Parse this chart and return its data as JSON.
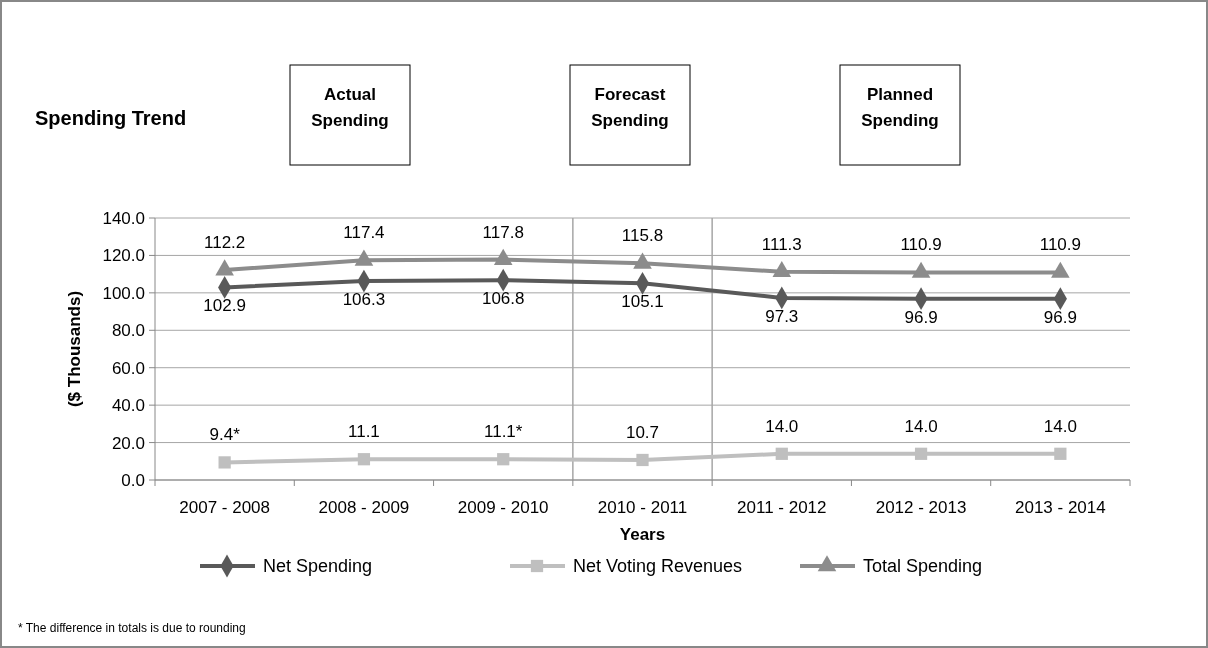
{
  "chart_data": {
    "type": "line",
    "title": "Spending Trend",
    "xlabel": "Years",
    "ylabel": "($ Thousands)",
    "categories": [
      "2007 - 2008",
      "2008 - 2009",
      "2009 - 2010",
      "2010 - 2011",
      "2011 - 2012",
      "2012 - 2013",
      "2013 - 2014"
    ],
    "series": [
      {
        "name": "Net Spending",
        "color": "#595959",
        "marker": "diamond",
        "values": [
          102.9,
          106.3,
          106.8,
          105.1,
          97.3,
          96.9,
          96.9
        ],
        "value_labels": [
          "102.9",
          "106.3",
          "106.8",
          "105.1",
          "97.3",
          "96.9",
          "96.9"
        ]
      },
      {
        "name": "Net Voting Revenues",
        "color": "#bfbfbf",
        "marker": "square",
        "values": [
          9.4,
          11.1,
          11.1,
          10.7,
          14.0,
          14.0,
          14.0
        ],
        "value_labels": [
          "9.4*",
          "11.1",
          "11.1*",
          "10.7",
          "14.0",
          "14.0",
          "14.0"
        ]
      },
      {
        "name": "Total Spending",
        "color": "#8c8c8c",
        "marker": "triangle",
        "values": [
          112.2,
          117.4,
          117.8,
          115.8,
          111.3,
          110.9,
          110.9
        ],
        "value_labels": [
          "112.2",
          "117.4",
          "117.8",
          "115.8",
          "111.3",
          "110.9",
          "110.9"
        ]
      }
    ],
    "ylim": [
      0,
      140
    ],
    "yticks": [
      {
        "value": 0,
        "label": "0.0"
      },
      {
        "value": 20,
        "label": "20.0"
      },
      {
        "value": 40,
        "label": "40.0"
      },
      {
        "value": 60,
        "label": "60.0"
      },
      {
        "value": 80,
        "label": "80.0"
      },
      {
        "value": 100,
        "label": "100.0"
      },
      {
        "value": 120,
        "label": "120.0"
      },
      {
        "value": 140,
        "label": "140.0"
      }
    ],
    "grid": "y",
    "legend": "bottom",
    "annotations": [
      "Actual Spending",
      "Forecast Spending",
      "Planned Spending",
      "* The difference in totals  is due to rounding"
    ]
  }
}
